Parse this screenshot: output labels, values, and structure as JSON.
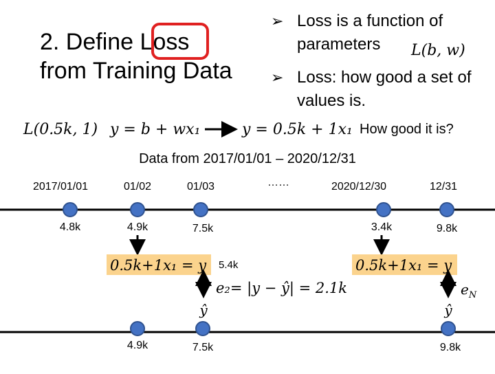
{
  "header": {
    "title_line1": "2. Define ",
    "title_highlight": "Loss",
    "title_line2": "from Training Data"
  },
  "bullets": [
    "Loss is a function of",
    "parameters",
    "Loss: how good a set of",
    "values is."
  ],
  "formulas": {
    "loss_params": "L(b, w)",
    "loss_value": "L(0.5k, 1)",
    "model": "y = b + wx₁",
    "model_set": "y = 0.5k + 1x₁",
    "question": "How good it is?"
  },
  "data_range": "Data from 2017/01/01 – 2020/12/31",
  "timeline": {
    "dates": [
      "2017/01/01",
      "01/02",
      "01/03",
      "……",
      "2020/12/30",
      "12/31"
    ],
    "values": [
      "4.8k",
      "4.9k",
      "7.5k",
      "3.4k",
      "9.8k"
    ]
  },
  "prediction": {
    "box1": "0.5k+1x₁ = y",
    "box2": "0.5k+1x₁ = y",
    "predicted": "5.4k",
    "error": "e₂= |y − ŷ| = 2.1k",
    "error_n": "e",
    "error_n_sub": "N",
    "yhat1": "ŷ",
    "yhat2": "ŷ"
  },
  "bottom": {
    "values": [
      "4.9k",
      "7.5k",
      "9.8k"
    ]
  }
}
